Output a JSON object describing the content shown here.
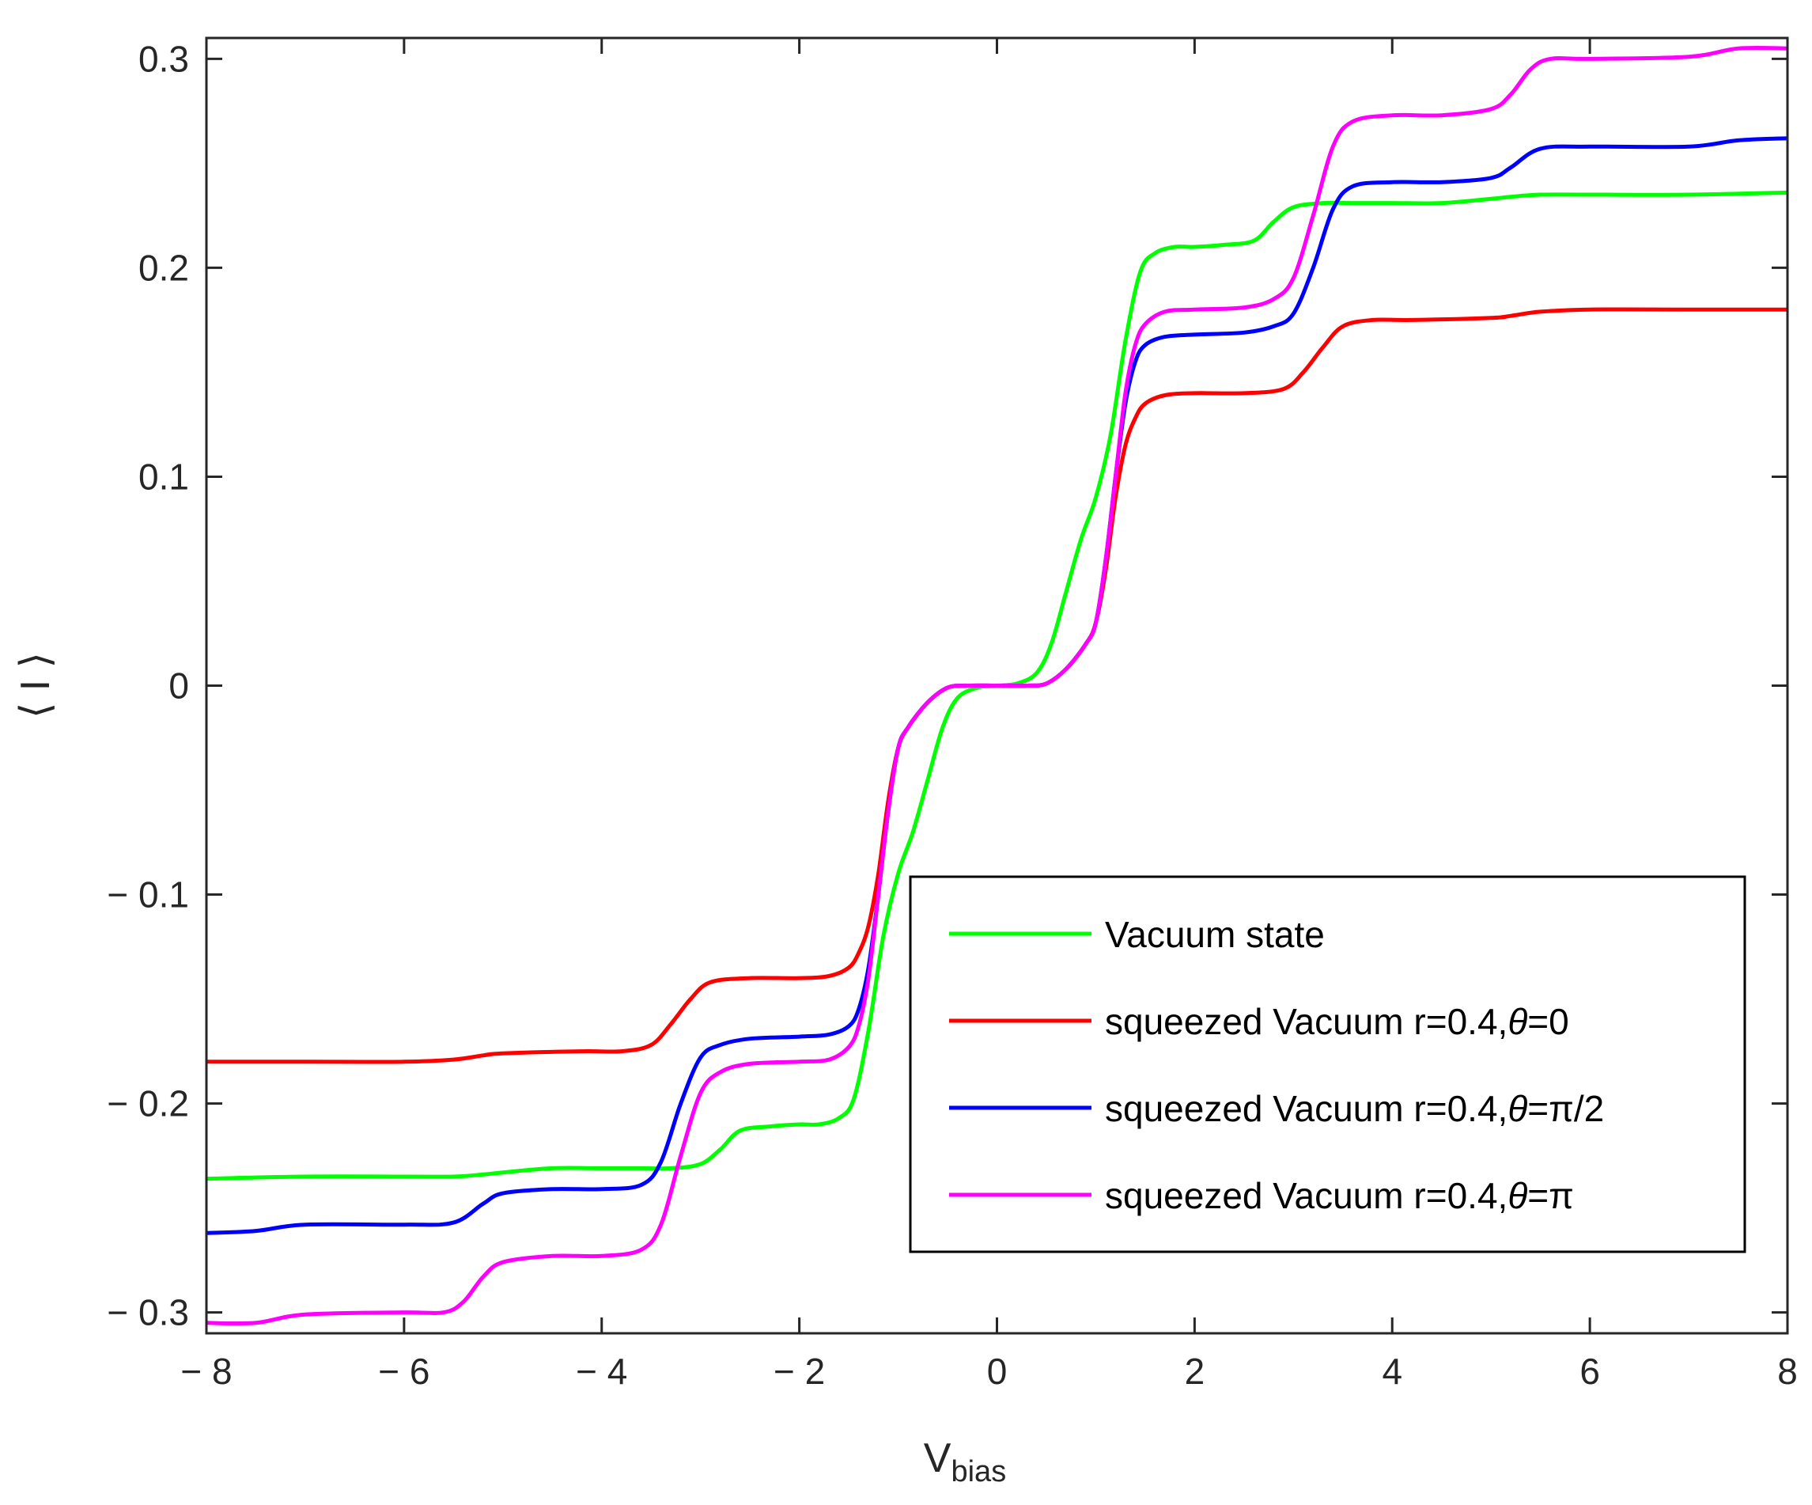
{
  "chart_data": {
    "type": "line",
    "title": "",
    "xlabel": {
      "main": "V",
      "sub": "bias"
    },
    "ylabel": "⟨ I ⟩",
    "xlim": [
      -8,
      8
    ],
    "ylim": [
      -0.31,
      0.31
    ],
    "xticks": [
      -8,
      -6,
      -4,
      -2,
      0,
      2,
      4,
      6,
      8
    ],
    "xtick_labels": [
      "− 8",
      "− 6",
      "− 4",
      "− 2",
      "0",
      "2",
      "4",
      "6",
      "8"
    ],
    "yticks": [
      -0.3,
      -0.2,
      -0.1,
      0,
      0.1,
      0.2,
      0.3
    ],
    "ytick_labels": [
      "− 0.3",
      "− 0.2",
      "− 0.1",
      "0",
      "0.1",
      "0.2",
      "0.3"
    ],
    "grid": false,
    "legend_position": "bottom-right",
    "series": [
      {
        "name": "Vacuum state",
        "legend_label": {
          "prefix": "Vacuum state",
          "theta_value": ""
        },
        "color": "#00ff00",
        "x": [
          0,
          0.2,
          0.4,
          0.55,
          0.7,
          0.85,
          1.0,
          1.15,
          1.3,
          1.45,
          1.6,
          1.8,
          2.0,
          2.3,
          2.6,
          2.8,
          3.0,
          3.3,
          3.6,
          4.0,
          4.5,
          5.0,
          5.2,
          5.5,
          6.0,
          7.0,
          8.0
        ],
        "y": [
          0.0,
          0.001,
          0.006,
          0.02,
          0.045,
          0.07,
          0.09,
          0.12,
          0.165,
          0.198,
          0.207,
          0.21,
          0.21,
          0.211,
          0.213,
          0.222,
          0.229,
          0.231,
          0.231,
          0.231,
          0.231,
          0.233,
          0.234,
          0.235,
          0.235,
          0.235,
          0.236
        ]
      },
      {
        "name": "squeezed Vacuum r=0.4,θ=0",
        "legend_label": {
          "prefix": "squeezed Vacuum r=0.4,",
          "theta_value": "0"
        },
        "color": "#ff0000",
        "x": [
          0,
          0.3,
          0.5,
          0.7,
          0.9,
          1.0,
          1.1,
          1.2,
          1.3,
          1.4,
          1.5,
          1.7,
          2.0,
          2.5,
          2.9,
          3.1,
          3.3,
          3.5,
          3.8,
          4.2,
          5.0,
          5.2,
          5.5,
          6.0,
          7.0,
          8.0
        ],
        "y": [
          0.0,
          0.0,
          0.001,
          0.008,
          0.02,
          0.03,
          0.055,
          0.09,
          0.115,
          0.128,
          0.135,
          0.139,
          0.14,
          0.14,
          0.142,
          0.15,
          0.162,
          0.172,
          0.175,
          0.175,
          0.176,
          0.177,
          0.179,
          0.18,
          0.18,
          0.18
        ]
      },
      {
        "name": "squeezed Vacuum r=0.4,θ=π/2",
        "legend_label": {
          "prefix": "squeezed Vacuum r=0.4,",
          "theta_value": "π/2"
        },
        "color": "#0000ff",
        "x": [
          0,
          0.3,
          0.5,
          0.7,
          0.9,
          1.0,
          1.1,
          1.2,
          1.3,
          1.4,
          1.5,
          1.7,
          2.0,
          2.5,
          2.8,
          3.0,
          3.2,
          3.4,
          3.6,
          4.0,
          4.5,
          5.0,
          5.2,
          5.5,
          6.0,
          7.0,
          7.5,
          8.0
        ],
        "y": [
          0.0,
          0.0,
          0.001,
          0.008,
          0.02,
          0.03,
          0.06,
          0.1,
          0.135,
          0.155,
          0.163,
          0.167,
          0.168,
          0.169,
          0.172,
          0.178,
          0.2,
          0.228,
          0.239,
          0.241,
          0.241,
          0.243,
          0.248,
          0.257,
          0.258,
          0.258,
          0.261,
          0.262
        ]
      },
      {
        "name": "squeezed Vacuum r=0.4,θ=π",
        "legend_label": {
          "prefix": "squeezed Vacuum r=0.4,",
          "theta_value": "π"
        },
        "color": "#ff00ff",
        "x": [
          0,
          0.3,
          0.5,
          0.7,
          0.9,
          1.0,
          1.1,
          1.2,
          1.3,
          1.4,
          1.5,
          1.7,
          2.0,
          2.5,
          2.8,
          3.0,
          3.2,
          3.4,
          3.6,
          4.0,
          4.5,
          5.0,
          5.2,
          5.4,
          5.6,
          6.0,
          7.0,
          7.5,
          8.0
        ],
        "y": [
          0.0,
          0.0,
          0.001,
          0.008,
          0.02,
          0.03,
          0.06,
          0.1,
          0.14,
          0.163,
          0.173,
          0.179,
          0.18,
          0.181,
          0.185,
          0.195,
          0.225,
          0.258,
          0.27,
          0.273,
          0.273,
          0.276,
          0.283,
          0.295,
          0.3,
          0.3,
          0.301,
          0.305,
          0.305
        ]
      }
    ]
  }
}
